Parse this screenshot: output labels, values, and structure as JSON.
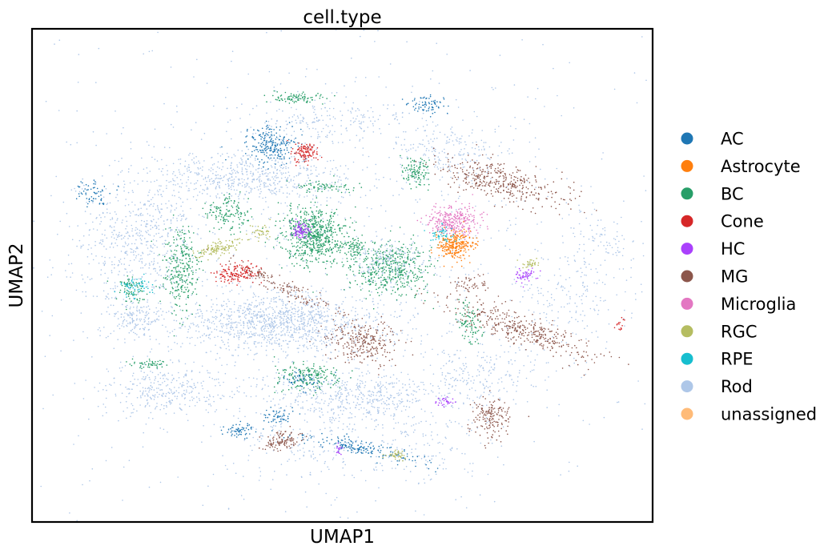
{
  "chart_data": {
    "type": "scatter",
    "title": "cell.type",
    "xlabel": "UMAP1",
    "ylabel": "UMAP2",
    "xlim": [
      -10,
      10
    ],
    "ylim": [
      -10,
      10
    ],
    "grid": false,
    "ticks": false,
    "legend_placement": "right",
    "categories": [
      {
        "name": "AC",
        "color": "#1f77b4"
      },
      {
        "name": "Astrocyte",
        "color": "#ff7f0e"
      },
      {
        "name": "BC",
        "color": "#279e68"
      },
      {
        "name": "Cone",
        "color": "#d62728"
      },
      {
        "name": "HC",
        "color": "#aa40fc"
      },
      {
        "name": "MG",
        "color": "#8c564b"
      },
      {
        "name": "Microglia",
        "color": "#e377c2"
      },
      {
        "name": "RGC",
        "color": "#b5bd61"
      },
      {
        "name": "RPE",
        "color": "#17becf"
      },
      {
        "name": "Rod",
        "color": "#aec7e8"
      },
      {
        "name": "unassigned",
        "color": "#ffbb78"
      }
    ],
    "clusters": [
      {
        "cat": "MG",
        "cx": 5.1,
        "cy": 3.8,
        "sx": 1.1,
        "sy": 0.35,
        "n": 380,
        "rot": -20
      },
      {
        "cat": "MG",
        "cx": 5.8,
        "cy": -2.2,
        "sx": 1.3,
        "sy": 0.3,
        "n": 380,
        "rot": -25
      },
      {
        "cat": "MG",
        "cx": 0.7,
        "cy": -2.7,
        "sx": 0.55,
        "sy": 0.45,
        "n": 260,
        "rot": 0
      },
      {
        "cat": "MG",
        "cx": 4.8,
        "cy": -5.8,
        "sx": 0.35,
        "sy": 0.4,
        "n": 160,
        "rot": 0
      },
      {
        "cat": "MG",
        "cx": -1.9,
        "cy": -6.7,
        "sx": 0.3,
        "sy": 0.18,
        "n": 110,
        "rot": 20
      },
      {
        "cat": "MG",
        "cx": -2.0,
        "cy": -0.4,
        "sx": 1.1,
        "sy": 0.15,
        "n": 140,
        "rot": -30
      },
      {
        "cat": "MG",
        "cx": 4.2,
        "cy": -0.4,
        "sx": 0.25,
        "sy": 0.2,
        "n": 50,
        "rot": 0
      },
      {
        "cat": "Astrocyte",
        "cx": 3.6,
        "cy": 1.2,
        "sx": 0.3,
        "sy": 0.3,
        "n": 280,
        "rot": 0
      },
      {
        "cat": "Microglia",
        "cx": 3.6,
        "cy": 2.2,
        "sx": 0.45,
        "sy": 0.3,
        "n": 300,
        "rot": 0
      },
      {
        "cat": "BC",
        "cx": -0.9,
        "cy": 1.6,
        "sx": 0.5,
        "sy": 0.55,
        "n": 650,
        "rot": 0
      },
      {
        "cat": "BC",
        "cx": 1.5,
        "cy": 0.3,
        "sx": 0.65,
        "sy": 0.55,
        "n": 480,
        "rot": 0
      },
      {
        "cat": "BC",
        "cx": -5.2,
        "cy": 0.2,
        "sx": 0.3,
        "sy": 0.9,
        "n": 280,
        "rot": 0
      },
      {
        "cat": "BC",
        "cx": -3.7,
        "cy": 2.5,
        "sx": 0.4,
        "sy": 0.35,
        "n": 140,
        "rot": 0
      },
      {
        "cat": "BC",
        "cx": -1.1,
        "cy": -4.1,
        "sx": 0.55,
        "sy": 0.3,
        "n": 190,
        "rot": 0
      },
      {
        "cat": "BC",
        "cx": -1.5,
        "cy": 7.2,
        "sx": 0.5,
        "sy": 0.1,
        "n": 90,
        "rot": 0
      },
      {
        "cat": "BC",
        "cx": 2.4,
        "cy": 4.2,
        "sx": 0.25,
        "sy": 0.3,
        "n": 110,
        "rot": 0
      },
      {
        "cat": "BC",
        "cx": 4.1,
        "cy": -2.0,
        "sx": 0.2,
        "sy": 0.5,
        "n": 90,
        "rot": 10
      },
      {
        "cat": "BC",
        "cx": -6.8,
        "cy": -0.6,
        "sx": 0.25,
        "sy": 0.25,
        "n": 70,
        "rot": 0
      },
      {
        "cat": "BC",
        "cx": -0.5,
        "cy": 3.6,
        "sx": 0.5,
        "sy": 0.12,
        "n": 70,
        "rot": 0
      },
      {
        "cat": "BC",
        "cx": 0.3,
        "cy": 1.2,
        "sx": 0.2,
        "sy": 0.2,
        "n": 60,
        "rot": 0
      },
      {
        "cat": "BC",
        "cx": -6.3,
        "cy": -3.6,
        "sx": 0.35,
        "sy": 0.1,
        "n": 50,
        "rot": 0
      },
      {
        "cat": "AC",
        "cx": -2.3,
        "cy": 5.3,
        "sx": 0.45,
        "sy": 0.4,
        "n": 230,
        "rot": 0
      },
      {
        "cat": "AC",
        "cx": 0.6,
        "cy": -7.0,
        "sx": 1.0,
        "sy": 0.15,
        "n": 180,
        "rot": -15
      },
      {
        "cat": "AC",
        "cx": -3.3,
        "cy": -6.3,
        "sx": 0.25,
        "sy": 0.15,
        "n": 60,
        "rot": 0
      },
      {
        "cat": "AC",
        "cx": 2.7,
        "cy": 6.9,
        "sx": 0.3,
        "sy": 0.2,
        "n": 70,
        "rot": 0
      },
      {
        "cat": "AC",
        "cx": -8.0,
        "cy": 3.3,
        "sx": 0.3,
        "sy": 0.25,
        "n": 60,
        "rot": 0
      },
      {
        "cat": "AC",
        "cx": -2.0,
        "cy": -5.7,
        "sx": 0.25,
        "sy": 0.15,
        "n": 50,
        "rot": 0
      },
      {
        "cat": "AC",
        "cx": -1.2,
        "cy": -4.3,
        "sx": 0.3,
        "sy": 0.2,
        "n": 50,
        "rot": 0
      },
      {
        "cat": "Cone",
        "cx": -1.2,
        "cy": 5.0,
        "sx": 0.2,
        "sy": 0.2,
        "n": 110,
        "rot": 0
      },
      {
        "cat": "Cone",
        "cx": -3.4,
        "cy": 0.1,
        "sx": 0.35,
        "sy": 0.2,
        "n": 150,
        "rot": 10
      },
      {
        "cat": "Cone",
        "cx": 9.0,
        "cy": -2.0,
        "sx": 0.08,
        "sy": 0.15,
        "n": 15,
        "rot": 0
      },
      {
        "cat": "HC",
        "cx": -1.3,
        "cy": 1.8,
        "sx": 0.15,
        "sy": 0.2,
        "n": 90,
        "rot": 0
      },
      {
        "cat": "HC",
        "cx": 5.9,
        "cy": 0.0,
        "sx": 0.2,
        "sy": 0.15,
        "n": 50,
        "rot": 0
      },
      {
        "cat": "HC",
        "cx": 3.3,
        "cy": -5.1,
        "sx": 0.2,
        "sy": 0.1,
        "n": 30,
        "rot": 0
      },
      {
        "cat": "HC",
        "cx": -0.1,
        "cy": -7.1,
        "sx": 0.05,
        "sy": 0.15,
        "n": 15,
        "rot": 0
      },
      {
        "cat": "RGC",
        "cx": -4.0,
        "cy": 1.1,
        "sx": 0.4,
        "sy": 0.12,
        "n": 120,
        "rot": 20
      },
      {
        "cat": "RGC",
        "cx": -2.6,
        "cy": 1.7,
        "sx": 0.15,
        "sy": 0.15,
        "n": 40,
        "rot": 0
      },
      {
        "cat": "RGC",
        "cx": 1.7,
        "cy": -7.3,
        "sx": 0.25,
        "sy": 0.1,
        "n": 40,
        "rot": 0
      },
      {
        "cat": "RGC",
        "cx": 6.0,
        "cy": 0.5,
        "sx": 0.2,
        "sy": 0.08,
        "n": 30,
        "rot": 0
      },
      {
        "cat": "RPE",
        "cx": -6.7,
        "cy": -0.5,
        "sx": 0.25,
        "sy": 0.2,
        "n": 60,
        "rot": 0
      },
      {
        "cat": "RPE",
        "cx": 3.3,
        "cy": 1.6,
        "sx": 0.25,
        "sy": 0.2,
        "n": 50,
        "rot": 0
      },
      {
        "cat": "Rod",
        "cx": -2.0,
        "cy": -1.9,
        "sx": 1.6,
        "sy": 0.6,
        "n": 1100,
        "rot": 0
      },
      {
        "cat": "Rod",
        "cx": -3.0,
        "cy": 4.0,
        "sx": 1.6,
        "sy": 0.5,
        "n": 550,
        "rot": 0
      },
      {
        "cat": "Rod",
        "cx": 0.5,
        "cy": -4.9,
        "sx": 1.7,
        "sy": 0.5,
        "n": 500,
        "rot": 0
      },
      {
        "cat": "Rod",
        "cx": -6.3,
        "cy": 1.5,
        "sx": 0.8,
        "sy": 1.2,
        "n": 380,
        "rot": 0
      },
      {
        "cat": "Rod",
        "cx": -5.7,
        "cy": -4.7,
        "sx": 1.0,
        "sy": 0.5,
        "n": 300,
        "rot": 0
      },
      {
        "cat": "Rod",
        "cx": 1.6,
        "cy": 0.6,
        "sx": 0.6,
        "sy": 0.45,
        "n": 160,
        "rot": 0
      },
      {
        "cat": "Rod",
        "cx": 3.6,
        "cy": 5.1,
        "sx": 1.0,
        "sy": 0.7,
        "n": 200,
        "rot": 0
      },
      {
        "cat": "Rod",
        "cx": -0.4,
        "cy": 6.2,
        "sx": 1.6,
        "sy": 0.5,
        "n": 200,
        "rot": 0
      },
      {
        "cat": "Rod",
        "cx": 4.5,
        "cy": -4.0,
        "sx": 1.0,
        "sy": 0.6,
        "n": 180,
        "rot": 0
      },
      {
        "cat": "Rod",
        "cx": -6.6,
        "cy": -1.8,
        "sx": 0.4,
        "sy": 0.4,
        "n": 130,
        "rot": 0
      },
      {
        "cat": "Rod",
        "cx": 7.3,
        "cy": -0.8,
        "sx": 1.0,
        "sy": 1.0,
        "n": 160,
        "rot": 0
      },
      {
        "cat": "Rod",
        "cx": -7.2,
        "cy": 0.8,
        "sx": 0.8,
        "sy": 1.8,
        "n": 180,
        "rot": 0
      },
      {
        "cat": "Rod",
        "cx": 8.2,
        "cy": 1.5,
        "sx": 0.6,
        "sy": 0.6,
        "n": 80,
        "rot": 0
      },
      {
        "cat": "Rod",
        "cx": 2.2,
        "cy": -6.9,
        "sx": 1.4,
        "sy": 0.8,
        "n": 140,
        "rot": 0
      },
      {
        "cat": "Rod",
        "cx": -1.5,
        "cy": -6.8,
        "sx": 1.3,
        "sy": 0.8,
        "n": 140,
        "rot": 0
      },
      {
        "cat": "Rod",
        "cx": 0.0,
        "cy": 0.0,
        "sx": 5.8,
        "sy": 5.6,
        "n": 1200,
        "rot": 0
      }
    ]
  }
}
